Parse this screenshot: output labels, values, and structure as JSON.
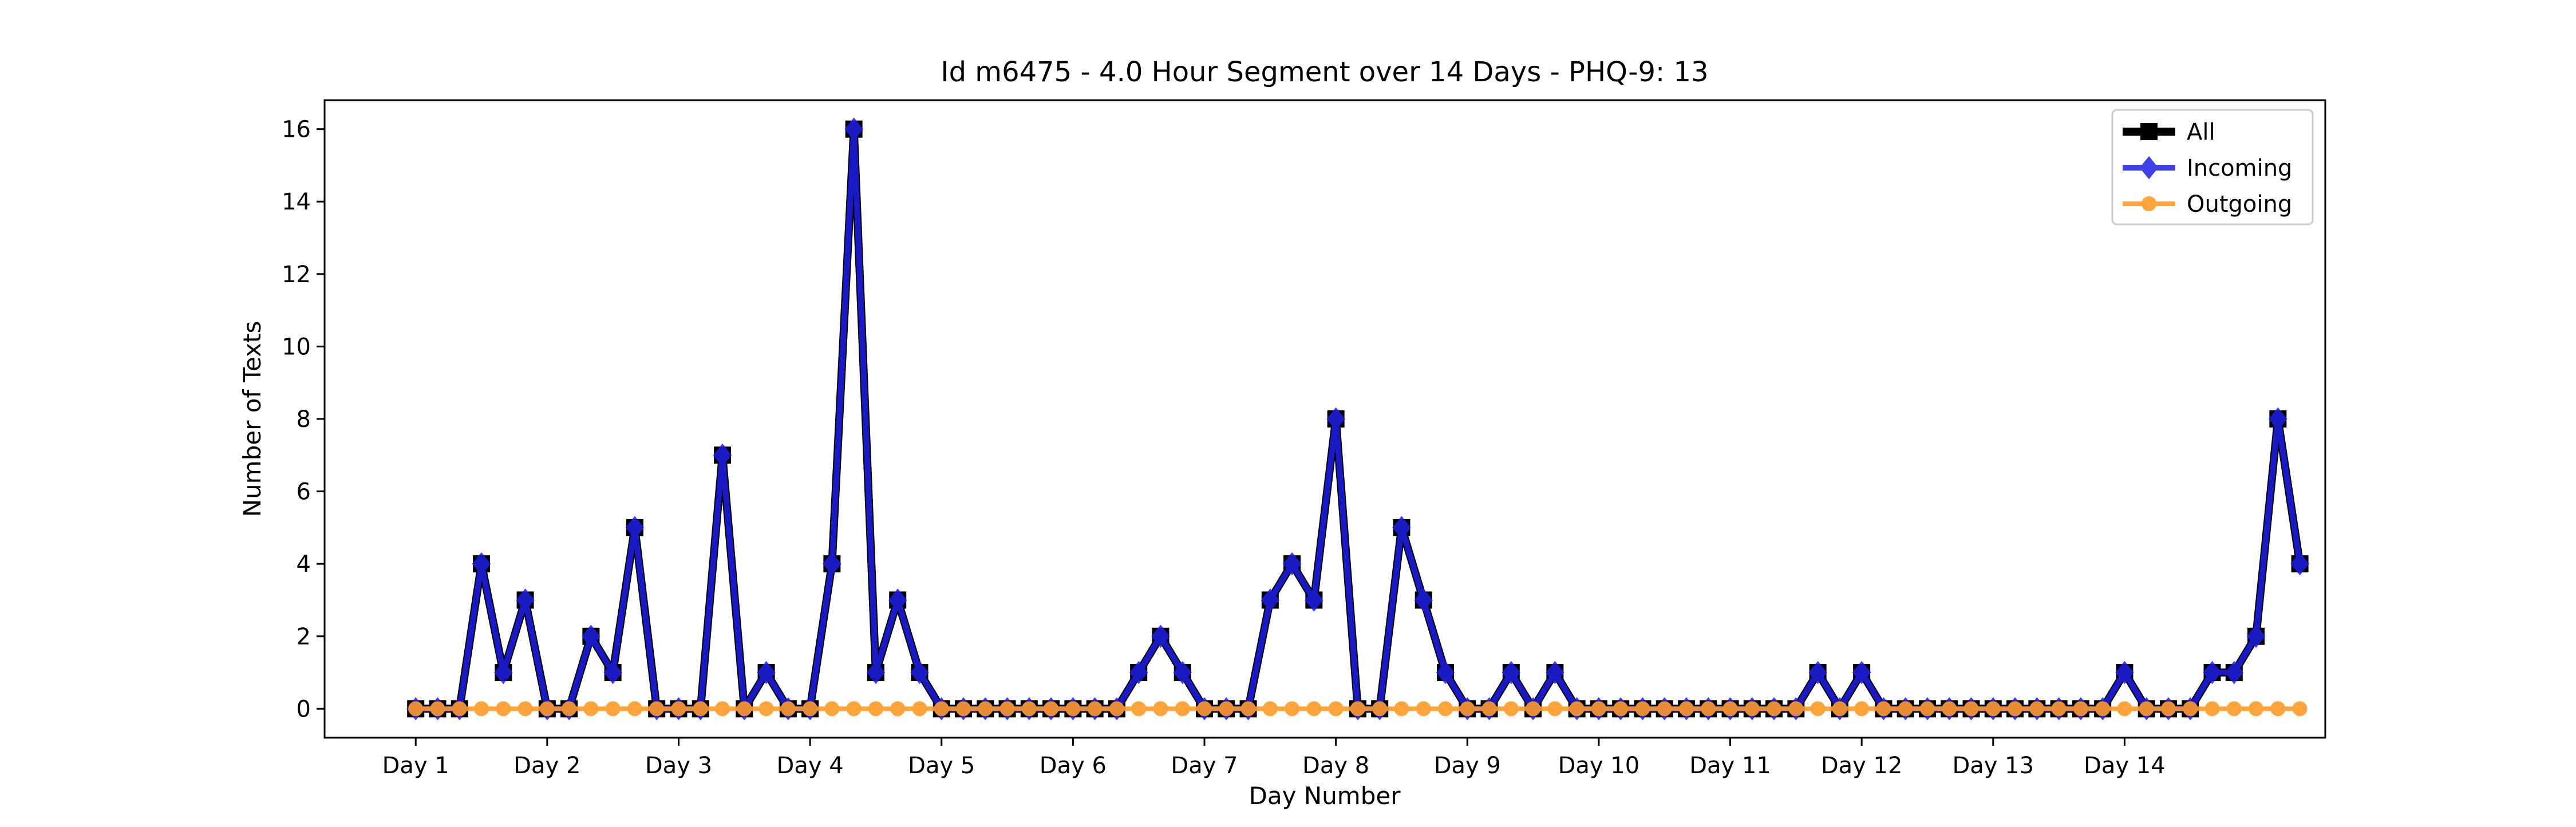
{
  "chart_data": {
    "type": "line",
    "title": "Id m6475 - 4.0 Hour Segment over 14 Days - PHQ-9: 13",
    "xlabel": "Day Number",
    "ylabel": "Number of Texts",
    "x_tick_labels": [
      "Day 1",
      "Day 2",
      "Day 3",
      "Day 4",
      "Day 5",
      "Day 6",
      "Day 7",
      "Day 8",
      "Day 9",
      "Day 10",
      "Day 11",
      "Day 12",
      "Day 13",
      "Day 14"
    ],
    "x_range": [
      -4.16,
      87.16
    ],
    "ylim": [
      -0.8,
      16.8
    ],
    "y_ticks": [
      0,
      2,
      4,
      6,
      8,
      10,
      12,
      14,
      16
    ],
    "legend_position": "top-right",
    "grid": false,
    "series": [
      {
        "name": "All",
        "color": "#000000",
        "marker": "square",
        "values": [
          0,
          0,
          0,
          4,
          1,
          3,
          0,
          0,
          2,
          1,
          5,
          0,
          0,
          0,
          7,
          0,
          1,
          0,
          0,
          4,
          16,
          1,
          3,
          1,
          0,
          0,
          0,
          0,
          0,
          0,
          0,
          0,
          0,
          1,
          2,
          1,
          0,
          0,
          0,
          3,
          4,
          3,
          8,
          0,
          0,
          5,
          3,
          1,
          0,
          0,
          1,
          0,
          1,
          0,
          0,
          0,
          0,
          0,
          0,
          0,
          0,
          0,
          0,
          0,
          1,
          0,
          1,
          0,
          0,
          0,
          0,
          0,
          0,
          0,
          0,
          0,
          0,
          0,
          1,
          0,
          0,
          0,
          1,
          1,
          2,
          8,
          4
        ]
      },
      {
        "name": "Incoming",
        "color": "#1f1fe6",
        "marker": "diamond",
        "values": [
          0,
          0,
          0,
          4,
          1,
          3,
          0,
          0,
          2,
          1,
          5,
          0,
          0,
          0,
          7,
          0,
          1,
          0,
          0,
          4,
          16,
          1,
          3,
          1,
          0,
          0,
          0,
          0,
          0,
          0,
          0,
          0,
          0,
          1,
          2,
          1,
          0,
          0,
          0,
          3,
          4,
          3,
          8,
          0,
          0,
          5,
          3,
          1,
          0,
          0,
          1,
          0,
          1,
          0,
          0,
          0,
          0,
          0,
          0,
          0,
          0,
          0,
          0,
          0,
          1,
          0,
          1,
          0,
          0,
          0,
          0,
          0,
          0,
          0,
          0,
          0,
          0,
          0,
          1,
          0,
          0,
          0,
          1,
          1,
          2,
          8,
          4
        ]
      },
      {
        "name": "Outgoing",
        "color": "#ff9a26",
        "marker": "circle",
        "values": [
          0,
          0,
          0,
          0,
          0,
          0,
          0,
          0,
          0,
          0,
          0,
          0,
          0,
          0,
          0,
          0,
          0,
          0,
          0,
          0,
          0,
          0,
          0,
          0,
          0,
          0,
          0,
          0,
          0,
          0,
          0,
          0,
          0,
          0,
          0,
          0,
          0,
          0,
          0,
          0,
          0,
          0,
          0,
          0,
          0,
          0,
          0,
          0,
          0,
          0,
          0,
          0,
          0,
          0,
          0,
          0,
          0,
          0,
          0,
          0,
          0,
          0,
          0,
          0,
          0,
          0,
          0,
          0,
          0,
          0,
          0,
          0,
          0,
          0,
          0,
          0,
          0,
          0,
          0,
          0,
          0,
          0,
          0,
          0,
          0,
          0,
          0
        ]
      }
    ]
  }
}
